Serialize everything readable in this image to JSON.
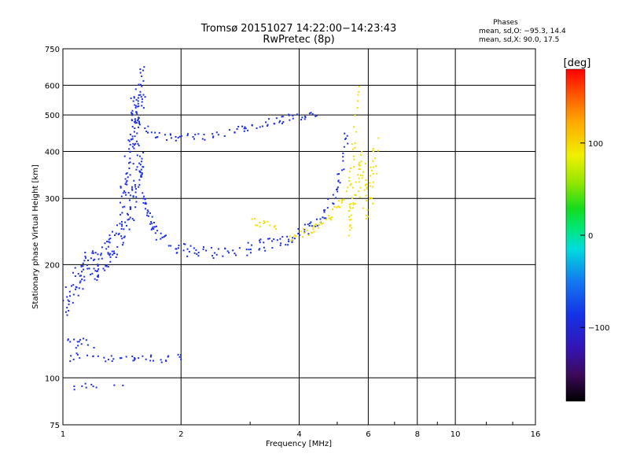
{
  "chart_data": {
    "type": "scatter",
    "title": "Tromsø 20151027 14:22:00−14:23:43",
    "subtitle": "RwPretec (8p)",
    "xlabel": "Frequency [MHz]",
    "ylabel": "Stationary phase Virtual Height [km]",
    "x_scale": "log",
    "y_scale": "log",
    "xlim": [
      1,
      16
    ],
    "ylim": [
      75,
      750
    ],
    "x_ticks": [
      1,
      2,
      4,
      6,
      8,
      10,
      16
    ],
    "x_tick_labels": [
      "1",
      "2",
      "4",
      "6",
      "8",
      "10",
      "16"
    ],
    "y_ticks": [
      75,
      100,
      200,
      300,
      400,
      500,
      600,
      750
    ],
    "y_tick_labels": [
      "75",
      "100",
      "200",
      "300",
      "400",
      "500",
      "600",
      "750"
    ],
    "grid": true,
    "phase_box": {
      "title": "Phases",
      "line_o": "mean, sd,O: −95.3, 14.4",
      "line_x": "mean, sd,X:  90.0, 17.5"
    },
    "colorbar": {
      "label": "[deg]",
      "range": [
        -180,
        180
      ],
      "ticks": [
        -100,
        0,
        100
      ],
      "tick_labels": [
        "−100",
        "0",
        "100"
      ]
    },
    "series": [
      {
        "polarization": "O",
        "color": "#1a2ee8",
        "phase_mean": -95.3,
        "traces": [
          {
            "f": [
              1.5,
              1.52,
              1.55,
              1.58,
              1.6,
              1.62,
              1.65,
              1.68,
              1.72,
              1.8,
              1.9,
              2.0,
              2.1,
              2.2,
              2.4,
              2.6,
              2.8,
              3.0,
              3.2,
              3.4,
              3.6,
              3.8,
              4.0,
              4.2,
              4.4,
              4.6,
              4.8,
              5.0,
              5.1,
              5.2,
              5.3
            ],
            "h": [
              560,
              480,
              420,
              360,
              320,
              290,
              270,
              255,
              245,
              232,
              225,
              220,
              218,
              216,
              215,
              216,
              218,
              220,
              224,
              228,
              232,
              236,
              240,
              248,
              258,
              270,
              290,
              320,
              350,
              400,
              450
            ],
            "spread_f": 0.015,
            "spread_h": 0.04,
            "repeat": 6
          },
          {
            "f": [
              1.0,
              1.05,
              1.1,
              1.15,
              1.2,
              1.25,
              1.3,
              1.35,
              1.4,
              1.45,
              1.5,
              1.55,
              1.6
            ],
            "h": [
              150,
              165,
              180,
              195,
              200,
              210,
              215,
              225,
              240,
              260,
              290,
              330,
              380
            ],
            "spread_f": 0.02,
            "spread_h": 0.1,
            "repeat": 14
          },
          {
            "f": [
              1.4,
              1.45,
              1.5,
              1.52,
              1.55,
              1.58,
              1.6
            ],
            "h": [
              300,
              350,
              420,
              480,
              520,
              560,
              600
            ],
            "spread_f": 0.015,
            "spread_h": 0.12,
            "repeat": 16
          },
          {
            "f": [
              1.62,
              1.7,
              1.8,
              1.9,
              2.0,
              2.2,
              2.4,
              2.6,
              2.8,
              3.0,
              3.2,
              3.4,
              3.6,
              3.8,
              4.0,
              4.2,
              4.4
            ],
            "h": [
              460,
              445,
              440,
              436,
              435,
              438,
              440,
              450,
              455,
              462,
              470,
              478,
              485,
              490,
              495,
              500,
              510
            ],
            "spread_f": 0.015,
            "spread_h": 0.025,
            "repeat": 5
          },
          {
            "f": [
              1.05,
              1.1,
              1.2,
              1.3,
              1.4,
              1.5,
              1.6,
              1.7,
              1.8,
              1.9,
              2.0
            ],
            "h": [
              112,
              114,
              113,
              112,
              114,
              113,
              112,
              113,
              112,
              114,
              113
            ],
            "spread_f": 0.02,
            "spread_h": 0.02,
            "repeat": 4
          },
          {
            "f": [
              1.02,
              1.05,
              1.08,
              1.1,
              1.15,
              1.2
            ],
            "h": [
              125,
              130,
              120,
              128,
              122,
              118
            ],
            "spread_f": 0.02,
            "spread_h": 0.05,
            "repeat": 3
          },
          {
            "f": [
              1.05,
              1.1,
              1.15,
              1.2,
              1.3,
              1.45
            ],
            "h": [
              95,
              94,
              96,
              95,
              94,
              95
            ],
            "spread_f": 0.015,
            "spread_h": 0.02,
            "repeat": 2
          }
        ]
      },
      {
        "polarization": "X",
        "color": "#f0e000",
        "phase_mean": 90.0,
        "traces": [
          {
            "f": [
              3.8,
              4.0,
              4.2,
              4.4,
              4.6,
              4.8,
              5.0,
              5.2,
              5.4,
              5.5,
              5.6,
              5.65
            ],
            "h": [
              238,
              240,
              244,
              250,
              258,
              268,
              282,
              300,
              340,
              400,
              500,
              600
            ],
            "spread_f": 0.012,
            "spread_h": 0.03,
            "repeat": 6
          },
          {
            "f": [
              5.3,
              5.4,
              5.5,
              5.6,
              5.7,
              5.8,
              5.9,
              6.0,
              6.1,
              6.2,
              6.3
            ],
            "h": [
              250,
              270,
              290,
              320,
              350,
              380,
              300,
              280,
              330,
              360,
              400
            ],
            "spread_f": 0.015,
            "spread_h": 0.1,
            "repeat": 8
          },
          {
            "f": [
              3.0,
              3.1,
              3.2,
              3.3,
              3.4,
              3.5
            ],
            "h": [
              255,
              260,
              250,
              262,
              258,
              252
            ],
            "spread_f": 0.02,
            "spread_h": 0.03,
            "repeat": 3
          }
        ]
      }
    ]
  }
}
